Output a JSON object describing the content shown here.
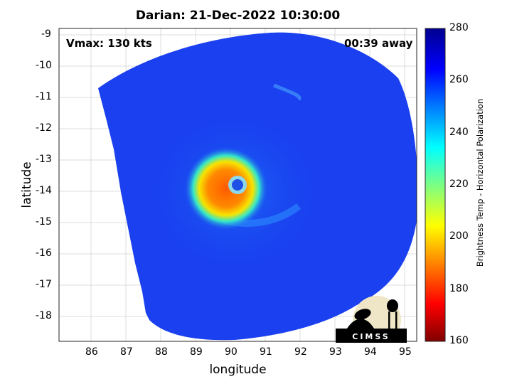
{
  "title": "Darian: 21-Dec-2022 10:30:00",
  "annotations": {
    "vmax": "Vmax: 130 kts",
    "time_away": "00:39 away"
  },
  "axes": {
    "xlabel": "longitude",
    "ylabel": "latitude",
    "x_ticks": [
      "86",
      "87",
      "88",
      "89",
      "90",
      "91",
      "92",
      "93",
      "94",
      "95"
    ],
    "y_ticks": [
      "-9",
      "-10",
      "-11",
      "-12",
      "-13",
      "-14",
      "-15",
      "-16",
      "-17",
      "-18"
    ],
    "xlim": [
      85.1,
      95.3
    ],
    "ylim": [
      -18.8,
      -8.8
    ]
  },
  "colorbar": {
    "label": "Brightness Temp - Horizontal Polarization",
    "ticks": [
      "280",
      "260",
      "240",
      "220",
      "200",
      "180",
      "160"
    ],
    "range": [
      160,
      280
    ],
    "colormap": "jet"
  },
  "logo": {
    "text": "CIMSS"
  },
  "colors": {
    "background_cold": "#1a3ff0",
    "eye_warm": "#ff6a00",
    "eye_center": "#1e50e6"
  }
}
